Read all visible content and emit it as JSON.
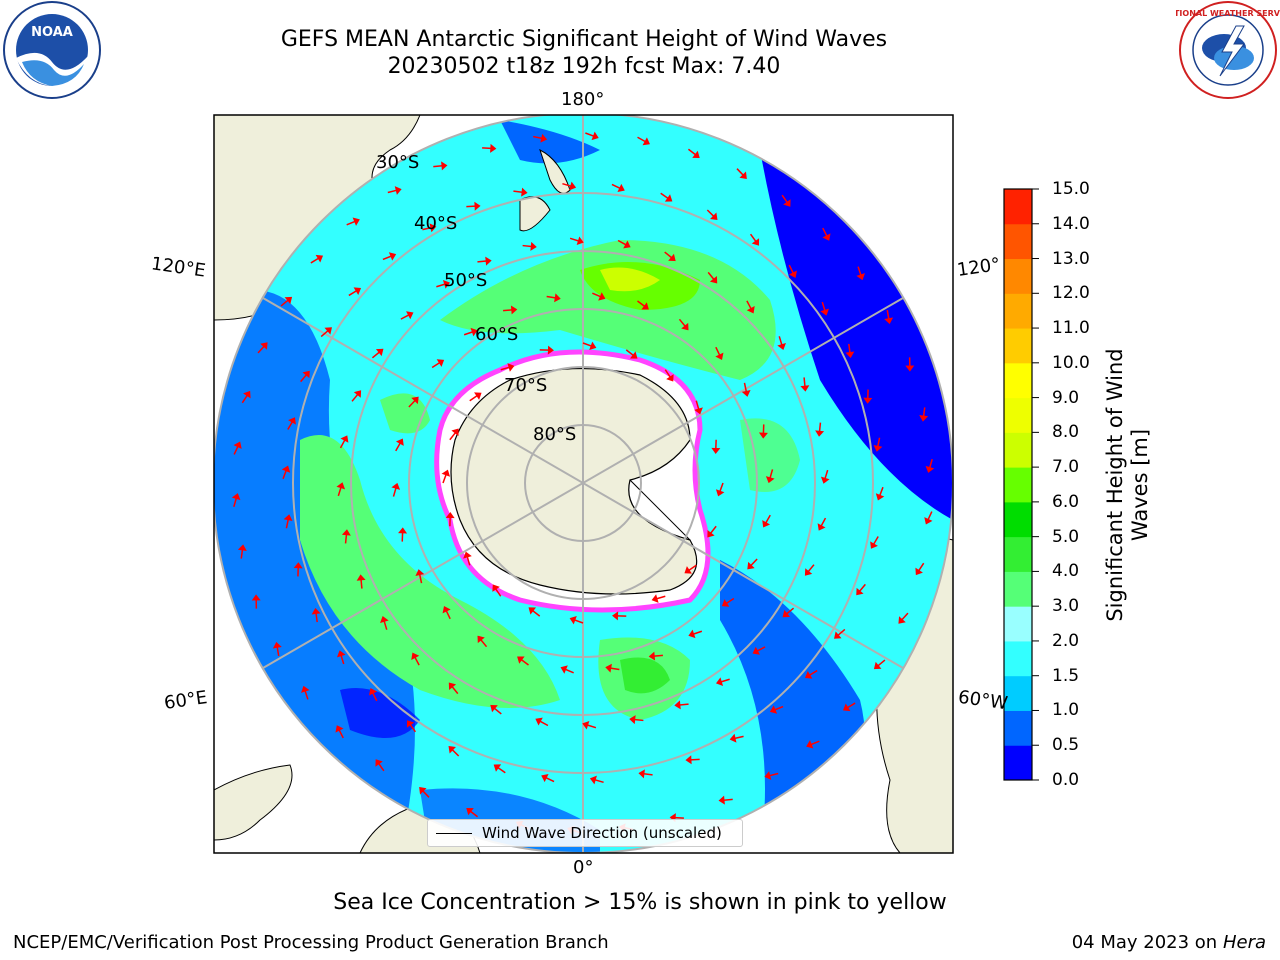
{
  "header": {
    "title_line1": "GEFS MEAN Antarctic Significant Height of Wind Waves",
    "title_line2": "20230502 t18z 192h fcst   Max: 7.40"
  },
  "map": {
    "longitude_labels": {
      "top": "180°",
      "bottom": "0°",
      "upper_left": "120°E",
      "upper_right": "120°",
      "lower_left": "60°E",
      "lower_right": "60°W"
    },
    "latitude_labels": [
      "30°S",
      "40°S",
      "50°S",
      "60°S",
      "70°S",
      "80°S"
    ],
    "legend_label": "Wind Wave Direction (unscaled)",
    "colors": {
      "land": "#efefdb",
      "ice_edge": "#ff44ff",
      "arrow": "#ff0000",
      "grid": "#b0b0b0"
    }
  },
  "colorbar": {
    "title": "Significant Height of Wind Waves [m]",
    "ticks": [
      "0.0",
      "0.5",
      "1.0",
      "1.5",
      "2.0",
      "3.0",
      "4.0",
      "5.0",
      "6.0",
      "7.0",
      "8.0",
      "9.0",
      "10.0",
      "11.0",
      "12.0",
      "13.0",
      "14.0",
      "15.0"
    ],
    "colors": [
      "#0000ff",
      "#0066ff",
      "#00ccff",
      "#33ffff",
      "#99ffff",
      "#55ff77",
      "#33ee33",
      "#00dd00",
      "#66ff00",
      "#ccff00",
      "#eeff00",
      "#ffff00",
      "#ffcc00",
      "#ffaa00",
      "#ff8800",
      "#ff5500",
      "#ff2200",
      "#ff0000"
    ]
  },
  "caption": "Sea Ice Concentration > 15% is shown in pink to yellow",
  "footer": {
    "org": "NCEP/EMC/Verification Post Processing Product Generation Branch",
    "date": "04 May 2023 on",
    "machine": "Hera"
  },
  "logos": {
    "noaa": "NOAA",
    "nws": "NATIONAL WEATHER SERVICE"
  }
}
